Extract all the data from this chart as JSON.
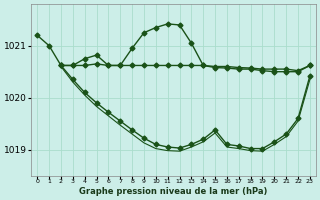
{
  "bg_color": "#cceee8",
  "grid_color": "#aaddcc",
  "line_color": "#1a5218",
  "title": "Graphe pression niveau de la mer (hPa)",
  "xmin": -0.5,
  "xmax": 23.5,
  "ymin": 1018.5,
  "ymax": 1021.8,
  "yticks": [
    1019,
    1020,
    1021
  ],
  "xticks": [
    0,
    1,
    2,
    3,
    4,
    5,
    6,
    7,
    8,
    9,
    10,
    11,
    12,
    13,
    14,
    15,
    16,
    17,
    18,
    19,
    20,
    21,
    22,
    23
  ],
  "line1_x": [
    0,
    1,
    2,
    3,
    4,
    5,
    6,
    7,
    8,
    9,
    10,
    11,
    12,
    13,
    14,
    15,
    16,
    17,
    18,
    19,
    20,
    21,
    22,
    23
  ],
  "line1_y": [
    1021.2,
    1021.0,
    1020.62,
    1020.62,
    1020.62,
    1020.65,
    1020.62,
    1020.62,
    1020.95,
    1021.25,
    1021.35,
    1021.42,
    1021.4,
    1021.05,
    1020.62,
    1020.6,
    1020.6,
    1020.58,
    1020.57,
    1020.55,
    1020.55,
    1020.55,
    1020.52,
    1020.62
  ],
  "line2_x": [
    2,
    3,
    4,
    5,
    6,
    7,
    8,
    9,
    10,
    11,
    12,
    13,
    14,
    15,
    16,
    17,
    18,
    19,
    20,
    21,
    22,
    23
  ],
  "line2_y": [
    1020.62,
    1020.62,
    1020.75,
    1020.82,
    1020.62,
    1020.62,
    1020.62,
    1020.62,
    1020.62,
    1020.62,
    1020.62,
    1020.62,
    1020.62,
    1020.58,
    1020.57,
    1020.55,
    1020.55,
    1020.52,
    1020.5,
    1020.5,
    1020.5,
    1020.62
  ],
  "line3_x": [
    2,
    3,
    4,
    5,
    6,
    7,
    8,
    9,
    10,
    11,
    12,
    13,
    14,
    15,
    16,
    17,
    18,
    19,
    20,
    21,
    22,
    23
  ],
  "line3_y": [
    1020.62,
    1020.35,
    1020.1,
    1019.9,
    1019.72,
    1019.55,
    1019.38,
    1019.22,
    1019.1,
    1019.05,
    1019.03,
    1019.1,
    1019.2,
    1019.38,
    1019.1,
    1019.07,
    1019.02,
    1019.02,
    1019.15,
    1019.3,
    1019.6,
    1020.42
  ],
  "line4_x": [
    2,
    3,
    4,
    5,
    6,
    7,
    8,
    9,
    10,
    11,
    12,
    13,
    14,
    15,
    16,
    17,
    18,
    19,
    20,
    21,
    22,
    23
  ],
  "line4_y": [
    1020.6,
    1020.3,
    1020.05,
    1019.83,
    1019.65,
    1019.47,
    1019.3,
    1019.13,
    1019.02,
    1018.98,
    1018.97,
    1019.05,
    1019.15,
    1019.32,
    1019.05,
    1019.02,
    1018.98,
    1018.97,
    1019.1,
    1019.25,
    1019.55,
    1020.35
  ]
}
